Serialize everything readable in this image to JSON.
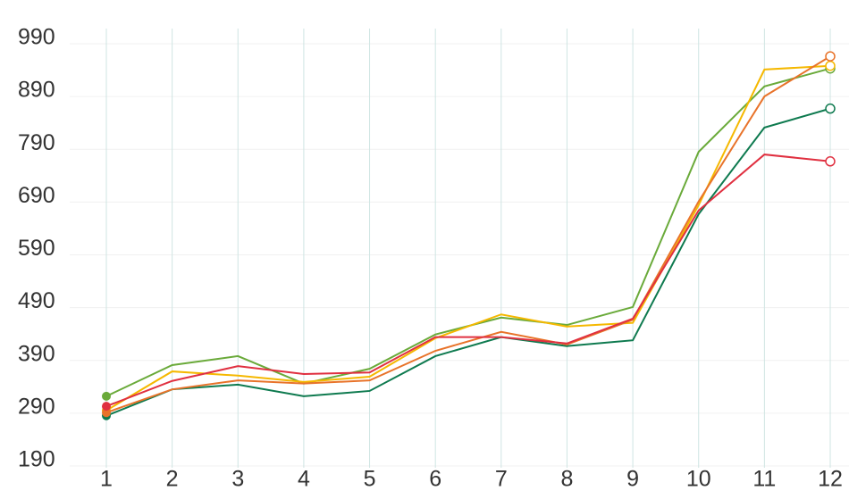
{
  "chart_data": {
    "type": "line",
    "x": [
      1,
      2,
      3,
      4,
      5,
      6,
      7,
      8,
      9,
      10,
      11,
      12
    ],
    "xlim": [
      1,
      12
    ],
    "xticks": [
      1,
      2,
      3,
      4,
      5,
      6,
      7,
      8,
      9,
      10,
      11,
      12
    ],
    "ylim": [
      190,
      990
    ],
    "yticks": [
      190,
      290,
      390,
      490,
      590,
      690,
      790,
      890,
      990
    ],
    "grid": true,
    "series": [
      {
        "color": "#0e7a4f",
        "values": [
          275,
          325,
          334,
          312,
          322,
          388,
          424,
          407,
          418,
          657,
          821,
          857
        ]
      },
      {
        "color": "#6aaa3a",
        "values": [
          312,
          371,
          388,
          336,
          364,
          429,
          461,
          447,
          481,
          775,
          899,
          933
        ]
      },
      {
        "color": "#f5b800",
        "values": [
          285,
          359,
          351,
          339,
          349,
          422,
          467,
          444,
          451,
          674,
          931,
          938
        ]
      },
      {
        "color": "#e8732a",
        "values": [
          281,
          325,
          342,
          336,
          342,
          398,
          434,
          410,
          457,
          681,
          880,
          956
        ]
      },
      {
        "color": "#e03040",
        "values": [
          293,
          341,
          369,
          354,
          357,
          424,
          424,
          412,
          459,
          664,
          770,
          757
        ]
      }
    ]
  }
}
